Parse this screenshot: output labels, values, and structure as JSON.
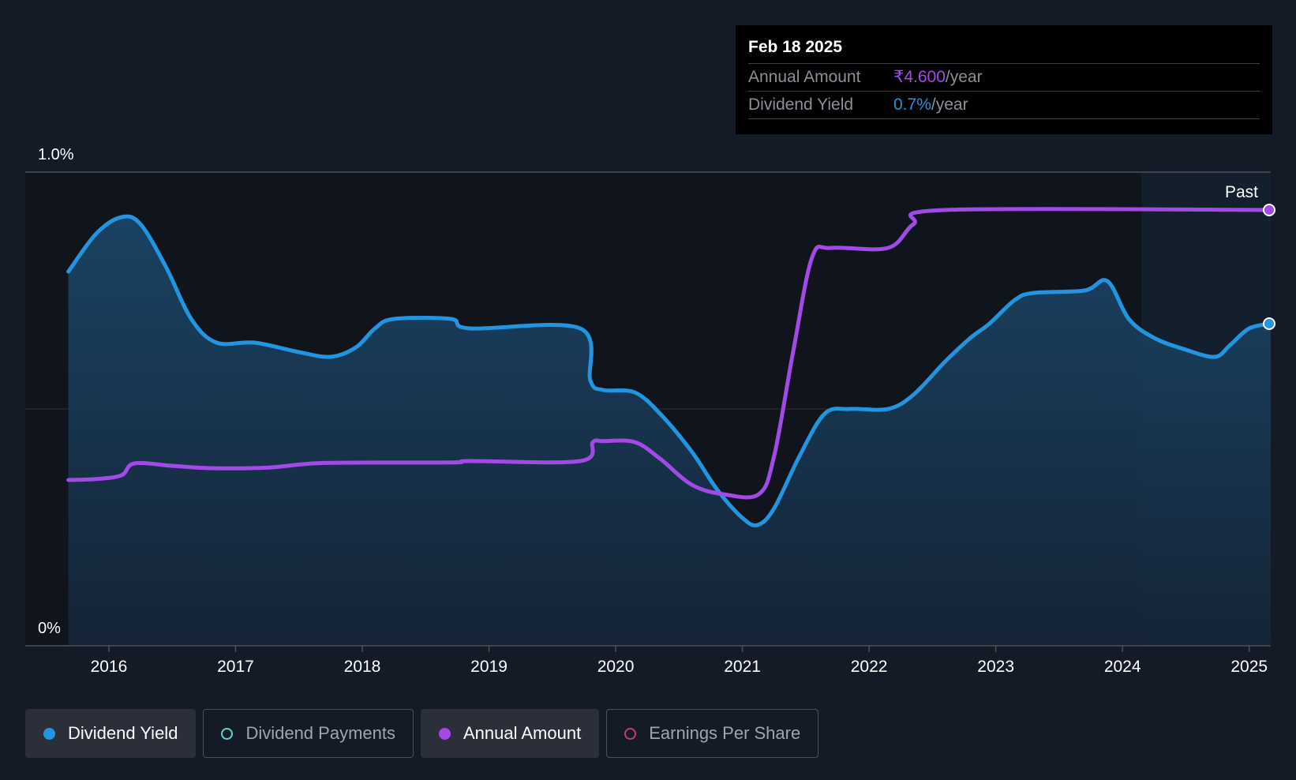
{
  "colors": {
    "background": "#151b26",
    "dividend_yield": "#2394df",
    "annual_amount": "#a24ae6",
    "dividend_payments": "#5fd3c4",
    "earnings_per_share": "#c83a73"
  },
  "tooltip": {
    "date": "Feb 18 2025",
    "rows": [
      {
        "label": "Annual Amount",
        "value": "₹4.600",
        "unit": "/year"
      },
      {
        "label": "Dividend Yield",
        "value": "0.7%",
        "unit": "/year"
      }
    ]
  },
  "legend": [
    {
      "label": "Dividend Yield",
      "active": true
    },
    {
      "label": "Dividend Payments",
      "active": false
    },
    {
      "label": "Annual Amount",
      "active": true
    },
    {
      "label": "Earnings Per Share",
      "active": false
    }
  ],
  "chart_data": {
    "type": "line",
    "ylabel_top": "1.0%",
    "ylabel_bottom": "0%",
    "ylim": [
      0,
      1.0
    ],
    "xlim": [
      2015.34,
      2025.17
    ],
    "past_label": "Past",
    "past_start": 2024.15,
    "x_ticks": [
      "2016",
      "2017",
      "2018",
      "2019",
      "2020",
      "2021",
      "2022",
      "2023",
      "2024",
      "2025"
    ],
    "grid": "horizontal",
    "series": [
      {
        "name": "Dividend Yield",
        "unit": "%",
        "area": true,
        "points": [
          [
            2015.68,
            0.79
          ],
          [
            2015.9,
            0.87
          ],
          [
            2016.1,
            0.905
          ],
          [
            2016.25,
            0.89
          ],
          [
            2016.45,
            0.8
          ],
          [
            2016.65,
            0.69
          ],
          [
            2016.85,
            0.64
          ],
          [
            2017.15,
            0.64
          ],
          [
            2017.5,
            0.62
          ],
          [
            2017.75,
            0.61
          ],
          [
            2017.95,
            0.63
          ],
          [
            2018.1,
            0.67
          ],
          [
            2018.25,
            0.69
          ],
          [
            2018.7,
            0.69
          ],
          [
            2018.85,
            0.67
          ],
          [
            2019.72,
            0.67
          ],
          [
            2019.8,
            0.56
          ],
          [
            2019.9,
            0.54
          ],
          [
            2020.15,
            0.535
          ],
          [
            2020.35,
            0.49
          ],
          [
            2020.6,
            0.41
          ],
          [
            2020.8,
            0.33
          ],
          [
            2021.0,
            0.27
          ],
          [
            2021.12,
            0.255
          ],
          [
            2021.25,
            0.29
          ],
          [
            2021.45,
            0.4
          ],
          [
            2021.65,
            0.49
          ],
          [
            2021.85,
            0.5
          ],
          [
            2022.15,
            0.5
          ],
          [
            2022.35,
            0.53
          ],
          [
            2022.6,
            0.6
          ],
          [
            2022.8,
            0.65
          ],
          [
            2022.95,
            0.68
          ],
          [
            2023.15,
            0.73
          ],
          [
            2023.3,
            0.745
          ],
          [
            2023.7,
            0.75
          ],
          [
            2023.88,
            0.77
          ],
          [
            2024.05,
            0.69
          ],
          [
            2024.25,
            0.65
          ],
          [
            2024.5,
            0.625
          ],
          [
            2024.73,
            0.61
          ],
          [
            2024.85,
            0.635
          ],
          [
            2025.0,
            0.67
          ],
          [
            2025.17,
            0.68
          ]
        ]
      },
      {
        "name": "Annual Amount",
        "unit": "₹",
        "area": false,
        "points": [
          [
            2015.68,
            0.35
          ],
          [
            2015.9,
            0.352
          ],
          [
            2016.1,
            0.36
          ],
          [
            2016.2,
            0.385
          ],
          [
            2016.5,
            0.38
          ],
          [
            2016.8,
            0.375
          ],
          [
            2017.25,
            0.376
          ],
          [
            2017.7,
            0.386
          ],
          [
            2018.7,
            0.387
          ],
          [
            2018.85,
            0.39
          ],
          [
            2019.72,
            0.39
          ],
          [
            2019.82,
            0.43
          ],
          [
            2019.9,
            0.432
          ],
          [
            2020.15,
            0.43
          ],
          [
            2020.35,
            0.395
          ],
          [
            2020.6,
            0.34
          ],
          [
            2020.85,
            0.32
          ],
          [
            2021.13,
            0.32
          ],
          [
            2021.25,
            0.4
          ],
          [
            2021.4,
            0.62
          ],
          [
            2021.55,
            0.82
          ],
          [
            2021.7,
            0.84
          ],
          [
            2022.15,
            0.84
          ],
          [
            2022.35,
            0.89
          ],
          [
            2022.6,
            0.92
          ],
          [
            2025.17,
            0.92
          ]
        ]
      }
    ]
  }
}
